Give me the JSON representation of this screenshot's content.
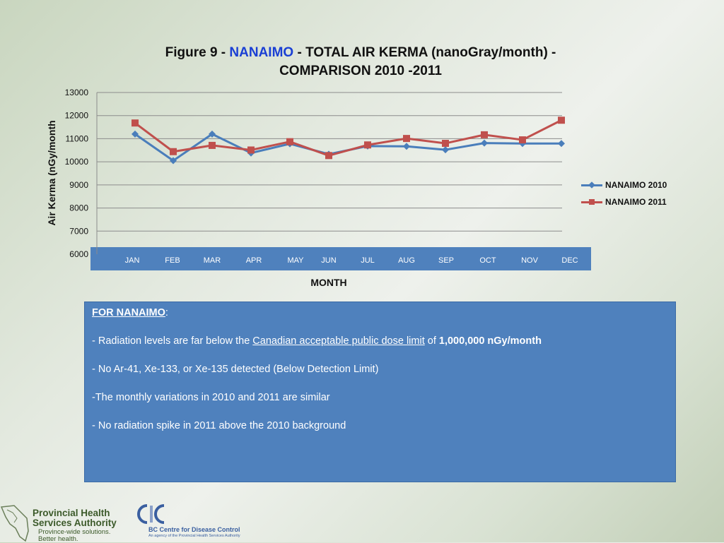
{
  "title": {
    "prefix": "Figure 9 - ",
    "accent": "NANAIMO",
    "suffix": " - TOTAL AIR KERMA (nanoGray/month) -",
    "line2": "COMPARISON 2010 -2011"
  },
  "colors": {
    "series_2010": "#4a7ebb",
    "series_2011": "#c0504d",
    "accent_title": "#1a3fd4",
    "panel": "#4f81bd"
  },
  "chart_data": {
    "type": "line",
    "xlabel": "MONTH",
    "ylabel": "Air Kerma (nGy/month",
    "ylim": [
      6000,
      13000
    ],
    "yticks": [
      6000,
      7000,
      8000,
      9000,
      10000,
      11000,
      12000,
      13000
    ],
    "grid": true,
    "legend_position": "right",
    "categories": [
      "JAN",
      "FEB",
      "MAR",
      "APR",
      "MAY",
      "JUN",
      "JUL",
      "AUG",
      "SEP",
      "OCT",
      "NOV",
      "DEC"
    ],
    "series": [
      {
        "name": "NANAIMO 2010",
        "values": [
          11200,
          10050,
          11200,
          10380,
          10780,
          10330,
          10680,
          10670,
          10520,
          10810,
          10790,
          10790
        ]
      },
      {
        "name": "NANAIMO 2011",
        "values": [
          11680,
          10440,
          10710,
          10510,
          10870,
          10270,
          10730,
          11010,
          10800,
          11170,
          10950,
          11800
        ]
      }
    ]
  },
  "note": {
    "heading": "FOR NANAIMO",
    "heading_suffix": ":",
    "line1_pre": "- Radiation levels are far below the ",
    "line1_link": "Canadian acceptable public dose limit",
    "line1_mid": " of ",
    "line1_bold": "1,000,000 nGy/month",
    "line2": "- No Ar-41, Xe-133, or Xe-135 detected (Below Detection Limit)",
    "line3": "-The monthly variations in 2010 and 2011 are similar",
    "line4": "- No radiation spike in 2011 above the 2010 background"
  },
  "footer": {
    "phsa_name": "Provincial Health Services Authority",
    "phsa_tagline": "Province-wide solutions. Better health.",
    "bccdc_name": "BC Centre for Disease Control",
    "bccdc_sub": "An agency of the Provincial Health Services Authority"
  }
}
